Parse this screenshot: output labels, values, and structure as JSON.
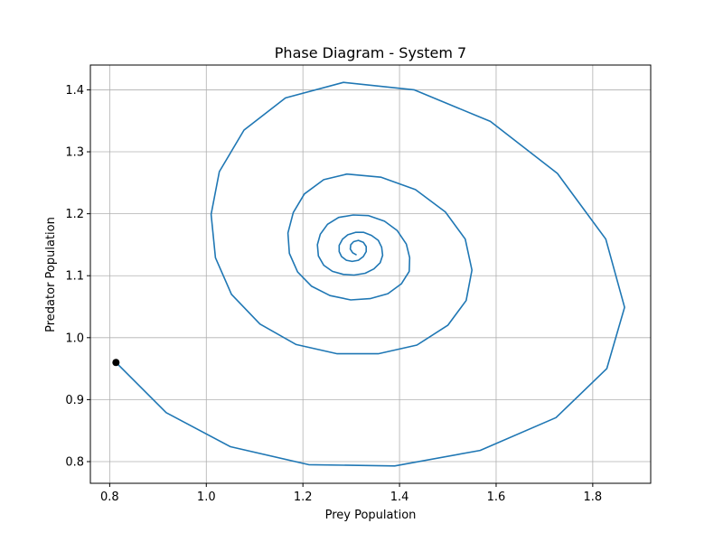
{
  "chart_data": {
    "type": "line",
    "title": "Phase Diagram - System 7",
    "xlabel": "Prey Population",
    "ylabel": "Predator Population",
    "xlim": [
      0.76,
      1.92
    ],
    "ylim": [
      0.765,
      1.44
    ],
    "x_ticks": [
      "0.8",
      "1.0",
      "1.2",
      "1.4",
      "1.6",
      "1.8"
    ],
    "y_ticks": [
      "0.8",
      "0.9",
      "1.0",
      "1.1",
      "1.2",
      "1.3",
      "1.4"
    ],
    "grid": true,
    "line_color": "#1f77b4",
    "marker_color": "#000000",
    "start_point": {
      "x": 0.813,
      "y": 0.96
    },
    "series": [
      {
        "points": [
          [
            0.813,
            0.96
          ],
          [
            0.917,
            0.879
          ],
          [
            1.05,
            0.824
          ],
          [
            1.212,
            0.795
          ],
          [
            1.39,
            0.793
          ],
          [
            1.567,
            0.818
          ],
          [
            1.724,
            0.871
          ],
          [
            1.829,
            0.95
          ],
          [
            1.866,
            1.049
          ],
          [
            1.827,
            1.159
          ],
          [
            1.727,
            1.265
          ],
          [
            1.588,
            1.349
          ],
          [
            1.43,
            1.4
          ],
          [
            1.284,
            1.412
          ],
          [
            1.164,
            1.387
          ],
          [
            1.078,
            1.335
          ],
          [
            1.027,
            1.268
          ],
          [
            1.01,
            1.199
          ],
          [
            1.019,
            1.129
          ],
          [
            1.052,
            1.07
          ],
          [
            1.111,
            1.022
          ],
          [
            1.186,
            0.989
          ],
          [
            1.271,
            0.974
          ],
          [
            1.356,
            0.974
          ],
          [
            1.436,
            0.988
          ],
          [
            1.5,
            1.02
          ],
          [
            1.538,
            1.06
          ],
          [
            1.55,
            1.109
          ],
          [
            1.536,
            1.159
          ],
          [
            1.495,
            1.203
          ],
          [
            1.433,
            1.239
          ],
          [
            1.362,
            1.259
          ],
          [
            1.291,
            1.264
          ],
          [
            1.243,
            1.255
          ],
          [
            1.203,
            1.232
          ],
          [
            1.18,
            1.202
          ],
          [
            1.169,
            1.169
          ],
          [
            1.172,
            1.136
          ],
          [
            1.189,
            1.106
          ],
          [
            1.218,
            1.083
          ],
          [
            1.256,
            1.068
          ],
          [
            1.299,
            1.061
          ],
          [
            1.339,
            1.063
          ],
          [
            1.376,
            1.071
          ],
          [
            1.404,
            1.087
          ],
          [
            1.42,
            1.107
          ],
          [
            1.421,
            1.129
          ],
          [
            1.414,
            1.151
          ],
          [
            1.395,
            1.173
          ],
          [
            1.369,
            1.188
          ],
          [
            1.336,
            1.197
          ],
          [
            1.304,
            1.198
          ],
          [
            1.274,
            1.194
          ],
          [
            1.251,
            1.183
          ],
          [
            1.236,
            1.167
          ],
          [
            1.23,
            1.15
          ],
          [
            1.232,
            1.132
          ],
          [
            1.243,
            1.117
          ],
          [
            1.261,
            1.107
          ],
          [
            1.284,
            1.102
          ],
          [
            1.306,
            1.101
          ],
          [
            1.329,
            1.104
          ],
          [
            1.347,
            1.111
          ],
          [
            1.36,
            1.121
          ],
          [
            1.365,
            1.133
          ],
          [
            1.363,
            1.146
          ],
          [
            1.356,
            1.157
          ],
          [
            1.342,
            1.165
          ],
          [
            1.326,
            1.17
          ],
          [
            1.309,
            1.17
          ],
          [
            1.293,
            1.166
          ],
          [
            1.282,
            1.159
          ],
          [
            1.275,
            1.149
          ],
          [
            1.275,
            1.139
          ],
          [
            1.28,
            1.131
          ],
          [
            1.29,
            1.125
          ],
          [
            1.302,
            1.123
          ],
          [
            1.315,
            1.125
          ],
          [
            1.325,
            1.131
          ],
          [
            1.331,
            1.139
          ],
          [
            1.331,
            1.147
          ],
          [
            1.325,
            1.154
          ],
          [
            1.315,
            1.157
          ],
          [
            1.305,
            1.155
          ],
          [
            1.299,
            1.15
          ],
          [
            1.298,
            1.143
          ],
          [
            1.303,
            1.137
          ],
          [
            1.31,
            1.134
          ]
        ]
      }
    ]
  }
}
